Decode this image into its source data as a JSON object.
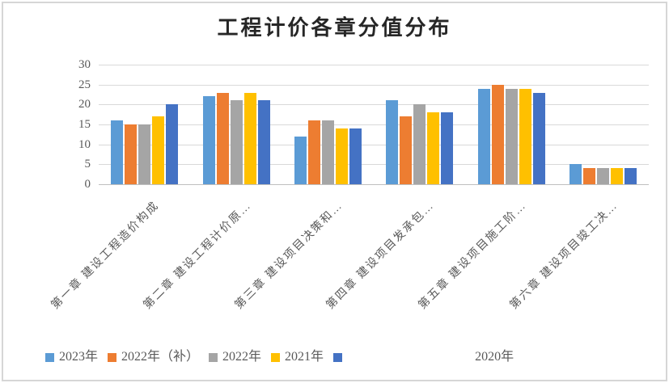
{
  "chart_data": {
    "type": "bar",
    "title": "工程计价各章分值分布",
    "categories": [
      "第一章 建设工程造价构成",
      "第二章 建设工程计价原…",
      "第三章 建设项目决策和…",
      "第四章 建设项目发承包…",
      "第五章 建设项目施工阶…",
      "第六章 建设项目竣工决…"
    ],
    "series": [
      {
        "name": "2023年",
        "color": "#5B9BD5",
        "values": [
          16,
          22,
          12,
          21,
          24,
          5
        ]
      },
      {
        "name": "2022年（补）",
        "color": "#ED7D31",
        "values": [
          15,
          23,
          16,
          17,
          25,
          4
        ]
      },
      {
        "name": "2022年",
        "color": "#A5A5A5",
        "values": [
          15,
          21,
          16,
          20,
          24,
          4
        ]
      },
      {
        "name": "2021年",
        "color": "#FFC000",
        "values": [
          17,
          23,
          14,
          18,
          24,
          4
        ]
      },
      {
        "name": "2020年",
        "color": "#4472C4",
        "values": [
          20,
          21,
          14,
          18,
          23,
          4
        ],
        "legend_label_detached": true
      }
    ],
    "ylim": [
      0,
      30
    ],
    "yticks": [
      0,
      5,
      10,
      15,
      20,
      25,
      30
    ],
    "grid": true,
    "legend_position": "bottom",
    "colors": {
      "gridline": "#d9d9d9",
      "axis_text": "#595959",
      "title_text": "#262626",
      "frame_border": "#d6d6d6",
      "background": "#ffffff"
    }
  }
}
